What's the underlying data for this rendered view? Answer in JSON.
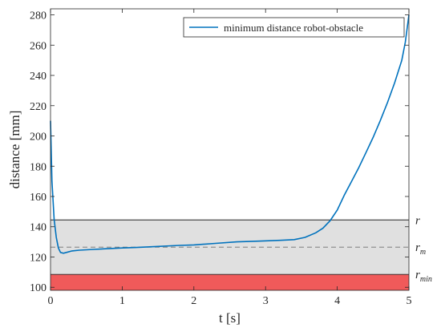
{
  "chart_data": {
    "type": "line",
    "xlabel": "t [s]",
    "ylabel": "distance [mm]",
    "xlim": [
      0,
      5
    ],
    "ylim": [
      98,
      284
    ],
    "xticks": [
      0,
      1,
      2,
      3,
      4,
      5
    ],
    "yticks": [
      100,
      120,
      140,
      160,
      180,
      200,
      220,
      240,
      260,
      280
    ],
    "grid": false,
    "legend_position": "top-right",
    "colors": {
      "line": "#0072BD",
      "band_fill": "#e0e0e0",
      "min_fill": "#f05a5a",
      "reference": "#262626"
    },
    "series": [
      {
        "name": "minimum distance robot-obstacle",
        "x": [
          0,
          0.02,
          0.05,
          0.08,
          0.11,
          0.14,
          0.18,
          0.22,
          0.3,
          0.4,
          0.6,
          0.8,
          1.0,
          1.2,
          1.5,
          1.8,
          2.0,
          2.3,
          2.6,
          2.9,
          3.2,
          3.4,
          3.55,
          3.7,
          3.8,
          3.9,
          4.0,
          4.1,
          4.2,
          4.3,
          4.4,
          4.5,
          4.6,
          4.7,
          4.8,
          4.9,
          4.95,
          5.0
        ],
        "y": [
          210,
          170,
          145,
          133,
          126,
          123,
          122.5,
          123,
          124,
          124.5,
          125,
          125.5,
          126,
          126.3,
          127,
          127.7,
          128,
          129,
          130,
          130.5,
          131,
          131.5,
          133,
          136,
          139,
          144,
          151,
          161,
          170,
          179,
          189,
          199,
          210,
          222,
          235,
          250,
          262,
          280
        ]
      }
    ],
    "reference_lines": [
      {
        "label": "r",
        "y": 144.5,
        "style": "solid"
      },
      {
        "label": "r",
        "sub": "m",
        "y": 126.5,
        "style": "dashed"
      },
      {
        "label": "r",
        "sub": "min",
        "y": 108.5,
        "style": "solid"
      }
    ]
  }
}
